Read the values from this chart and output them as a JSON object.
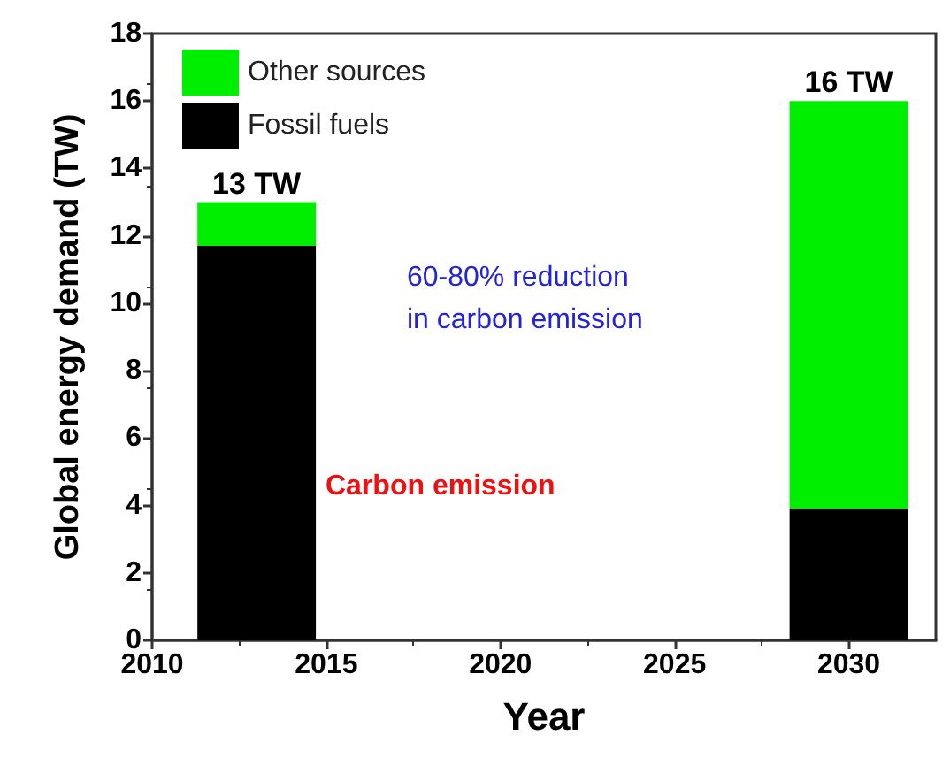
{
  "chart_data": {
    "type": "bar",
    "stacked": true,
    "xlabel": "Year",
    "ylabel": "Global energy demand (TW)",
    "x": [
      2013,
      2030
    ],
    "series": [
      {
        "name": "Fossil fuels",
        "color": "#000000",
        "values": [
          11.7,
          3.9
        ]
      },
      {
        "name": "Other sources",
        "color": "#00ee00",
        "values": [
          1.3,
          12.1
        ]
      }
    ],
    "totals": [
      "13 TW",
      "16 TW"
    ],
    "xlim": [
      2010,
      2032.5
    ],
    "xticks": [
      2010,
      2015,
      2020,
      2025,
      2030
    ],
    "ylim": [
      0,
      18
    ],
    "yticks": [
      0,
      2,
      4,
      6,
      8,
      10,
      12,
      14,
      16,
      18
    ],
    "grid": false,
    "legend": "top left",
    "annotations": [
      "60-80% reduction\nin carbon emission",
      "Carbon emission"
    ]
  }
}
